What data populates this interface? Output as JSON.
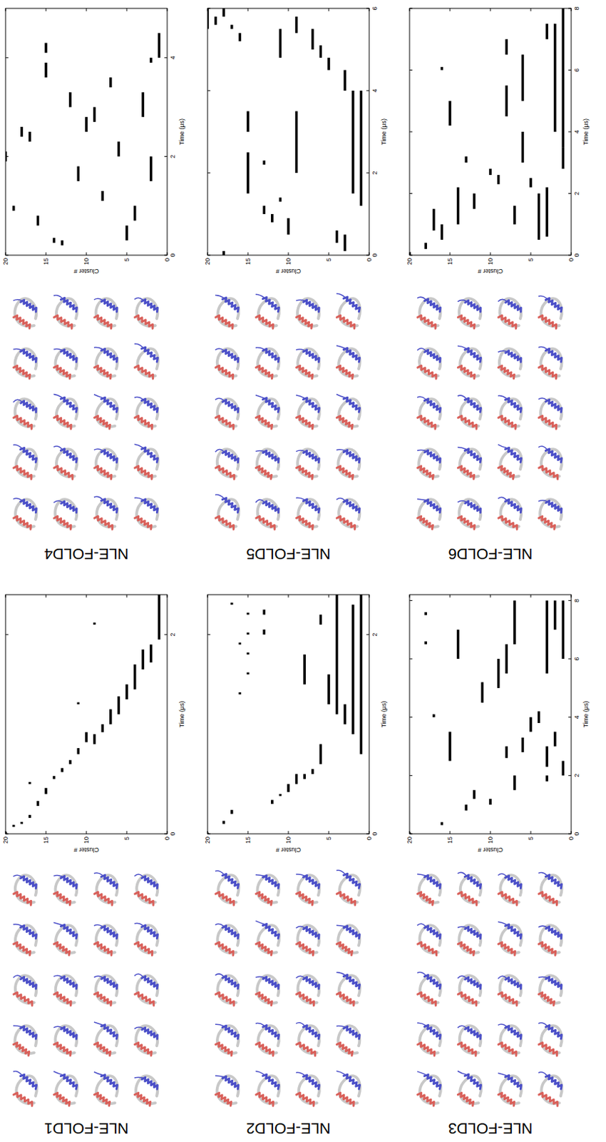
{
  "chart_data": [
    {
      "type": "timeline",
      "title": "NLE-FOLD1",
      "x_label": "Time (μs)",
      "y_label": "Cluster #",
      "color": "#000000",
      "xlim": [
        0,
        2.4
      ],
      "xticks": [
        0,
        2
      ],
      "ylim": [
        0,
        20
      ],
      "yticks": [
        0,
        5,
        10,
        15,
        20
      ],
      "x_start": [
        0.0,
        0.07,
        0.1,
        0.16,
        0.28,
        0.4,
        0.55,
        0.62,
        0.7,
        0.8,
        0.9,
        0.92,
        1.02,
        1.1,
        1.2,
        1.35,
        1.45,
        1.65,
        1.72,
        1.95,
        0.5,
        1.3,
        2.1
      ],
      "x_end": [
        0.02,
        0.09,
        0.12,
        0.19,
        0.33,
        0.46,
        0.58,
        0.66,
        0.74,
        0.86,
        1.0,
        1.02,
        1.1,
        1.25,
        1.38,
        1.5,
        1.7,
        1.85,
        1.9,
        2.4,
        0.52,
        1.32,
        2.12
      ],
      "values": [
        20,
        19,
        18,
        17,
        16,
        15,
        14,
        13,
        12,
        11,
        9,
        10,
        8,
        7,
        6,
        5,
        4,
        3,
        2,
        1,
        17,
        11,
        9
      ]
    },
    {
      "type": "timeline",
      "title": "NLE-FOLD2",
      "x_label": "Time (μs)",
      "y_label": "Cluster #",
      "color": "#000000",
      "xlim": [
        0,
        2.4
      ],
      "xticks": [
        0,
        2
      ],
      "ylim": [
        0,
        20
      ],
      "yticks": [
        0,
        5,
        10,
        15,
        20
      ],
      "x_start": [
        0,
        0.1,
        0.2,
        0.3,
        0.38,
        0.42,
        0.5,
        0.55,
        0.6,
        0.7,
        0.8,
        1.0,
        1.1,
        1.2,
        1.3,
        1.5,
        1.6,
        1.8,
        2.0,
        2.2,
        2.0,
        2.2,
        1.9,
        2.3,
        1.4,
        2.1
      ],
      "x_end": [
        0.01,
        0.13,
        0.24,
        0.34,
        0.4,
        0.5,
        0.6,
        0.6,
        0.65,
        0.9,
        2.4,
        2.3,
        1.3,
        2.4,
        1.6,
        1.8,
        1.62,
        1.82,
        2.02,
        2.22,
        2.05,
        2.25,
        1.92,
        2.32,
        1.42,
        2.2
      ],
      "values": [
        20,
        18,
        17,
        12,
        11,
        10,
        9,
        8,
        7,
        6,
        1,
        2,
        3,
        4,
        5,
        8,
        15,
        15,
        15,
        15,
        13,
        13,
        16,
        17,
        16,
        6
      ]
    },
    {
      "type": "timeline",
      "title": "NLE-FOLD3",
      "x_label": "Time (μs)",
      "y_label": "Cluster #",
      "color": "#000000",
      "xlim": [
        0,
        8.2
      ],
      "xticks": [
        0,
        2,
        4,
        6,
        8
      ],
      "ylim": [
        0,
        20
      ],
      "yticks": [
        0,
        5,
        10,
        15,
        20
      ],
      "x_start": [
        0,
        0.3,
        0.8,
        1.0,
        1.2,
        1.5,
        1.8,
        2.0,
        2.3,
        2.6,
        2.8,
        3.0,
        3.5,
        3.8,
        2.5,
        4.5,
        4.0,
        5.0,
        5.5,
        6.0,
        6.5,
        6.0,
        7.0,
        6.5,
        7.5,
        5.5
      ],
      "x_end": [
        0.05,
        0.4,
        1.0,
        1.2,
        1.5,
        2.0,
        2.0,
        2.5,
        3.0,
        3.0,
        3.3,
        3.5,
        4.0,
        4.2,
        3.5,
        5.2,
        4.1,
        6.0,
        8.0,
        8.0,
        8.0,
        7.0,
        8.0,
        6.6,
        7.6,
        6.5
      ],
      "values": [
        20,
        16,
        13,
        10,
        12,
        7,
        3,
        1,
        3,
        8,
        6,
        2,
        5,
        4,
        15,
        11,
        17,
        9,
        3,
        1,
        7,
        14,
        2,
        18,
        18,
        8
      ]
    },
    {
      "type": "timeline",
      "title": "NLE-FOLD4",
      "x_label": "Time (μs)",
      "y_label": "Cluster #",
      "color": "#000000",
      "xlim": [
        0,
        5
      ],
      "xticks": [
        0,
        2,
        4
      ],
      "ylim": [
        0,
        20
      ],
      "yticks": [
        0,
        5,
        10,
        15,
        20
      ],
      "x_start": [
        0.2,
        0.25,
        0.3,
        0.6,
        0.7,
        0.9,
        1.1,
        1.5,
        1.5,
        1.9,
        2.0,
        2.3,
        2.4,
        2.5,
        2.7,
        2.8,
        3.0,
        3.4,
        3.6,
        3.9,
        4.0,
        4.1
      ],
      "x_end": [
        0.3,
        0.35,
        0.6,
        0.8,
        1.0,
        1.0,
        1.3,
        2.0,
        1.8,
        2.1,
        2.3,
        2.5,
        2.6,
        2.8,
        3.0,
        3.3,
        3.3,
        3.6,
        3.9,
        4.0,
        4.5,
        4.3
      ],
      "values": [
        13,
        14,
        5,
        16,
        4,
        19,
        8,
        2,
        11,
        20,
        6,
        17,
        18,
        10,
        9,
        3,
        12,
        7,
        15,
        2,
        1,
        15
      ]
    },
    {
      "type": "timeline",
      "title": "NLE-FOLD5",
      "x_label": "Time (μs)",
      "y_label": "Cluster #",
      "color": "#000000",
      "xlim": [
        0,
        6
      ],
      "xticks": [
        0,
        2,
        4,
        6
      ],
      "ylim": [
        0,
        20
      ],
      "yticks": [
        0,
        5,
        10,
        15,
        20
      ],
      "x_start": [
        0,
        0.1,
        0.3,
        0.5,
        0.8,
        1.0,
        1.2,
        1.3,
        1.5,
        1.5,
        2.0,
        2.2,
        3.0,
        4.0,
        4.5,
        4.8,
        5.0,
        5.2,
        5.5,
        5.6,
        5.5,
        4.8,
        5.4,
        5.8
      ],
      "x_end": [
        0.1,
        0.5,
        0.6,
        0.9,
        1.0,
        1.2,
        4.0,
        1.4,
        4.0,
        2.5,
        3.5,
        2.3,
        3.5,
        4.5,
        4.8,
        5.1,
        5.5,
        5.4,
        6.0,
        5.8,
        5.6,
        5.5,
        5.8,
        6.0
      ],
      "values": [
        18,
        3,
        4,
        10,
        12,
        13,
        1,
        11,
        2,
        15,
        9,
        13,
        15,
        3,
        5,
        6,
        7,
        16,
        20,
        19,
        17,
        11,
        9,
        18
      ]
    },
    {
      "type": "timeline",
      "title": "NLE-FOLD6",
      "x_label": "Time (μs)",
      "y_label": "Cluster #",
      "color": "#000000",
      "xlim": [
        0,
        8
      ],
      "xticks": [
        0,
        2,
        4,
        6,
        8
      ],
      "ylim": [
        0,
        20
      ],
      "yticks": [
        0,
        5,
        10,
        15,
        20
      ],
      "x_start": [
        0,
        0.2,
        0.5,
        0.8,
        1.0,
        1.5,
        0.5,
        0.6,
        1.0,
        2.2,
        2.3,
        2.6,
        2.8,
        3.0,
        3.5,
        4.0,
        4.2,
        4.5,
        5.0,
        6.0,
        6.5,
        3.0,
        7.0
      ],
      "x_end": [
        0.1,
        0.4,
        1.0,
        1.5,
        2.2,
        2.0,
        2.0,
        2.2,
        1.6,
        2.5,
        2.6,
        2.8,
        3.5,
        4.0,
        8.0,
        7.5,
        5.0,
        5.5,
        6.5,
        6.1,
        7.0,
        3.2,
        7.5
      ],
      "values": [
        20,
        18,
        16,
        17,
        14,
        12,
        4,
        3,
        7,
        5,
        9,
        10,
        1,
        6,
        1,
        2,
        15,
        8,
        6,
        16,
        8,
        13,
        3
      ]
    }
  ]
}
